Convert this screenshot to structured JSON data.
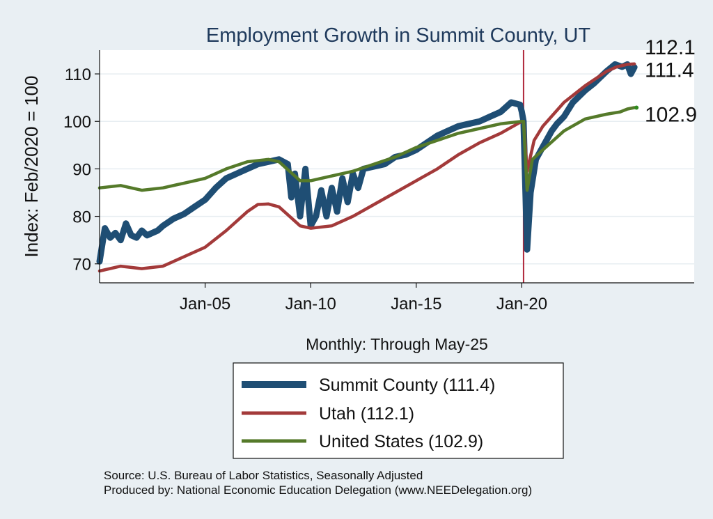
{
  "chart_data": {
    "type": "line",
    "title": "Employment Growth in Summit  County, UT",
    "xlabel": "Monthly: Through May-25",
    "ylabel": "Index: Feb/2020 = 100",
    "xlim": [
      "2000-01",
      "2028-03"
    ],
    "ylim": [
      66,
      115
    ],
    "yticks": [
      70,
      80,
      90,
      100,
      110
    ],
    "xticks": [
      {
        "label": "Jan-05",
        "date": "2005-01"
      },
      {
        "label": "Jan-10",
        "date": "2010-01"
      },
      {
        "label": "Jan-15",
        "date": "2015-01"
      },
      {
        "label": "Jan-20",
        "date": "2020-01"
      }
    ],
    "vline": {
      "date": "2020-02",
      "color": "#b0283c"
    },
    "grid": true,
    "legend_position": "bottom",
    "series": [
      {
        "name": "Summit  County (111.4)",
        "color": "#1f4e74",
        "end_label": "111.4",
        "points": [
          [
            "2000-01",
            70.5
          ],
          [
            "2000-04",
            77.5
          ],
          [
            "2000-07",
            75.5
          ],
          [
            "2000-10",
            76.5
          ],
          [
            "2001-01",
            75.0
          ],
          [
            "2001-04",
            78.5
          ],
          [
            "2001-07",
            76.0
          ],
          [
            "2001-10",
            75.5
          ],
          [
            "2002-01",
            77.0
          ],
          [
            "2002-04",
            76.0
          ],
          [
            "2002-07",
            76.5
          ],
          [
            "2002-10",
            77.0
          ],
          [
            "2003-01",
            78.0
          ],
          [
            "2003-07",
            79.5
          ],
          [
            "2004-01",
            80.5
          ],
          [
            "2004-07",
            82.0
          ],
          [
            "2005-01",
            83.5
          ],
          [
            "2005-07",
            86.0
          ],
          [
            "2006-01",
            88.0
          ],
          [
            "2006-07",
            89.0
          ],
          [
            "2007-01",
            90.0
          ],
          [
            "2007-07",
            91.0
          ],
          [
            "2008-01",
            91.5
          ],
          [
            "2008-07",
            92.0
          ],
          [
            "2008-12",
            91.0
          ],
          [
            "2009-02",
            84.0
          ],
          [
            "2009-04",
            89.0
          ],
          [
            "2009-07",
            80.0
          ],
          [
            "2009-10",
            90.0
          ],
          [
            "2010-01",
            78.0
          ],
          [
            "2010-04",
            80.0
          ],
          [
            "2010-07",
            85.5
          ],
          [
            "2010-10",
            80.0
          ],
          [
            "2011-01",
            86.0
          ],
          [
            "2011-04",
            81.0
          ],
          [
            "2011-07",
            88.0
          ],
          [
            "2011-10",
            83.0
          ],
          [
            "2012-01",
            89.0
          ],
          [
            "2012-04",
            86.0
          ],
          [
            "2012-07",
            90.0
          ],
          [
            "2013-01",
            90.5
          ],
          [
            "2013-07",
            91.0
          ],
          [
            "2014-01",
            92.5
          ],
          [
            "2014-07",
            93.0
          ],
          [
            "2015-01",
            94.0
          ],
          [
            "2015-07",
            95.5
          ],
          [
            "2016-01",
            97.0
          ],
          [
            "2016-07",
            98.0
          ],
          [
            "2017-01",
            99.0
          ],
          [
            "2017-07",
            99.5
          ],
          [
            "2018-01",
            100.0
          ],
          [
            "2018-07",
            101.0
          ],
          [
            "2019-01",
            102.0
          ],
          [
            "2019-07",
            104.0
          ],
          [
            "2019-12",
            103.5
          ],
          [
            "2020-01",
            102.0
          ],
          [
            "2020-02",
            100.0
          ],
          [
            "2020-04",
            73.0
          ],
          [
            "2020-06",
            85.0
          ],
          [
            "2020-09",
            92.0
          ],
          [
            "2020-12",
            94.0
          ],
          [
            "2021-03",
            96.0
          ],
          [
            "2021-06",
            98.0
          ],
          [
            "2021-09",
            99.5
          ],
          [
            "2022-01",
            101.0
          ],
          [
            "2022-06",
            104.0
          ],
          [
            "2023-01",
            106.5
          ],
          [
            "2023-06",
            108.0
          ],
          [
            "2024-01",
            110.5
          ],
          [
            "2024-06",
            112.0
          ],
          [
            "2024-10",
            111.5
          ],
          [
            "2025-01",
            112.0
          ],
          [
            "2025-03",
            110.0
          ],
          [
            "2025-05",
            111.4
          ]
        ]
      },
      {
        "name": "Utah (112.1)",
        "color": "#a33a3a",
        "end_label": "112.1",
        "points": [
          [
            "2000-01",
            68.5
          ],
          [
            "2001-01",
            69.5
          ],
          [
            "2002-01",
            69.0
          ],
          [
            "2003-01",
            69.5
          ],
          [
            "2004-01",
            71.5
          ],
          [
            "2005-01",
            73.5
          ],
          [
            "2006-01",
            77.0
          ],
          [
            "2007-01",
            81.0
          ],
          [
            "2007-07",
            82.5
          ],
          [
            "2008-01",
            82.6
          ],
          [
            "2008-07",
            82.0
          ],
          [
            "2009-01",
            80.0
          ],
          [
            "2009-07",
            78.0
          ],
          [
            "2010-01",
            77.5
          ],
          [
            "2011-01",
            78.0
          ],
          [
            "2012-01",
            80.0
          ],
          [
            "2013-01",
            82.5
          ],
          [
            "2014-01",
            85.0
          ],
          [
            "2015-01",
            87.5
          ],
          [
            "2016-01",
            90.0
          ],
          [
            "2017-01",
            93.0
          ],
          [
            "2018-01",
            95.5
          ],
          [
            "2019-01",
            97.5
          ],
          [
            "2020-01",
            100.0
          ],
          [
            "2020-02",
            100.0
          ],
          [
            "2020-04",
            89.5
          ],
          [
            "2020-08",
            96.0
          ],
          [
            "2021-01",
            99.0
          ],
          [
            "2022-01",
            104.0
          ],
          [
            "2023-01",
            107.5
          ],
          [
            "2024-01",
            110.5
          ],
          [
            "2024-07",
            111.5
          ],
          [
            "2025-01",
            112.0
          ],
          [
            "2025-05",
            112.1
          ]
        ]
      },
      {
        "name": "United States (102.9)",
        "color": "#557a2a",
        "end_label": "102.9",
        "points": [
          [
            "2000-01",
            86.0
          ],
          [
            "2001-01",
            86.5
          ],
          [
            "2002-01",
            85.5
          ],
          [
            "2003-01",
            86.0
          ],
          [
            "2004-01",
            87.0
          ],
          [
            "2005-01",
            88.0
          ],
          [
            "2006-01",
            90.0
          ],
          [
            "2007-01",
            91.5
          ],
          [
            "2008-01",
            92.0
          ],
          [
            "2008-07",
            91.5
          ],
          [
            "2009-01",
            89.5
          ],
          [
            "2009-07",
            87.5
          ],
          [
            "2010-01",
            87.5
          ],
          [
            "2011-01",
            88.5
          ],
          [
            "2012-01",
            89.5
          ],
          [
            "2013-01",
            91.0
          ],
          [
            "2014-01",
            92.5
          ],
          [
            "2015-01",
            94.5
          ],
          [
            "2016-01",
            96.0
          ],
          [
            "2017-01",
            97.5
          ],
          [
            "2018-01",
            98.5
          ],
          [
            "2019-01",
            99.5
          ],
          [
            "2020-01",
            100.0
          ],
          [
            "2020-02",
            100.0
          ],
          [
            "2020-04",
            85.5
          ],
          [
            "2020-07",
            92.0
          ],
          [
            "2021-01",
            94.0
          ],
          [
            "2022-01",
            98.0
          ],
          [
            "2023-01",
            100.5
          ],
          [
            "2024-01",
            101.5
          ],
          [
            "2024-09",
            102.0
          ],
          [
            "2025-01",
            102.6
          ],
          [
            "2025-05",
            102.9
          ]
        ]
      }
    ]
  },
  "legend": {
    "items": [
      {
        "label": "Summit  County (111.4)",
        "color": "#1f4e74"
      },
      {
        "label": "Utah (112.1)",
        "color": "#a33a3a"
      },
      {
        "label": "United States (102.9)",
        "color": "#557a2a"
      }
    ]
  },
  "footer": {
    "line1": "Source: U.S. Bureau of Labor Statistics, Seasonally Adjusted",
    "line2": "Produced by: National Economic Education Delegation (www.NEEDelegation.org)"
  }
}
